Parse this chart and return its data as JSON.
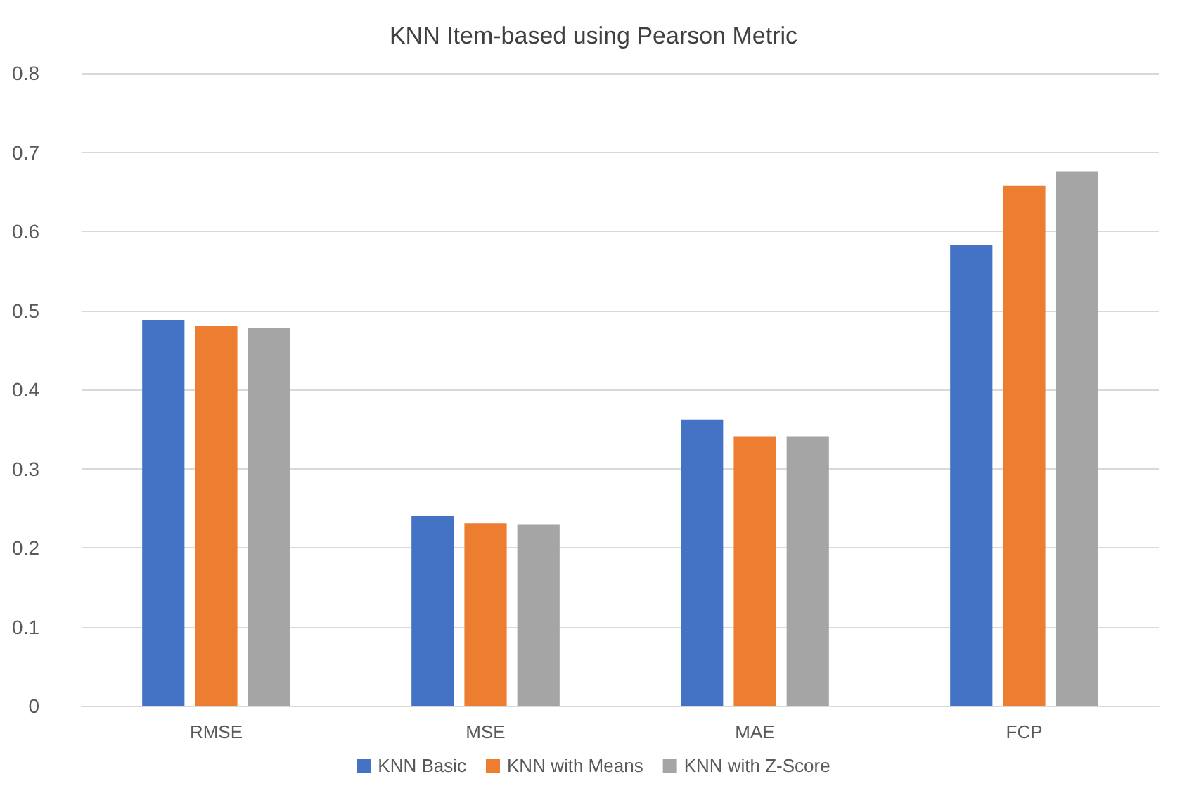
{
  "chart_data": {
    "type": "bar",
    "title": "KNN Item-based using Pearson Metric",
    "categories": [
      "RMSE",
      "MSE",
      "MAE",
      "FCP"
    ],
    "series": [
      {
        "name": "KNN Basic",
        "color": "#4472c4",
        "values": [
          0.488,
          0.24,
          0.362,
          0.583
        ]
      },
      {
        "name": "KNN with Means",
        "color": "#ed7d31",
        "values": [
          0.48,
          0.231,
          0.341,
          0.658
        ]
      },
      {
        "name": "KNN with Z-Score",
        "color": "#a5a5a5",
        "values": [
          0.478,
          0.229,
          0.341,
          0.676
        ]
      }
    ],
    "ylim": [
      0,
      0.8
    ],
    "yticks": [
      0,
      0.1,
      0.2,
      0.3,
      0.4,
      0.5,
      0.6,
      0.7,
      0.8
    ],
    "grid": "y",
    "legend": "bottom"
  }
}
